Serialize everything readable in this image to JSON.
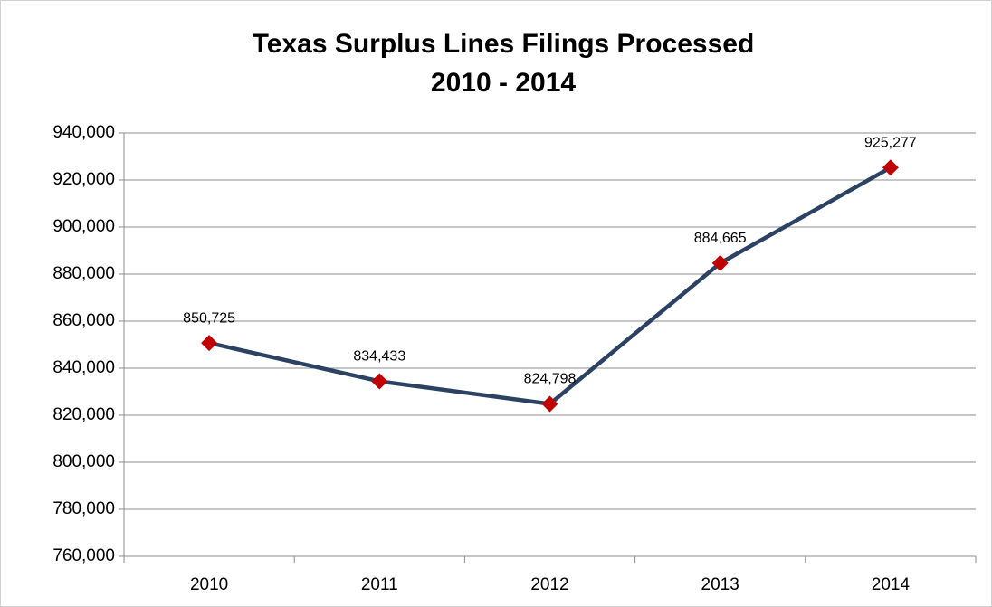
{
  "chart_data": {
    "type": "line",
    "title": [
      "Texas Surplus Lines Filings Processed",
      "2010 - 2014"
    ],
    "categories": [
      "2010",
      "2011",
      "2012",
      "2013",
      "2014"
    ],
    "series": [
      {
        "name": "Filings Processed",
        "color": "#2c4263",
        "marker_color": "#c00000",
        "values": [
          850725,
          834433,
          824798,
          884665,
          925277
        ],
        "value_labels": [
          "850,725",
          "834,433",
          "824,798",
          "884,665",
          "925,277"
        ]
      }
    ],
    "ylim": [
      760000,
      940000
    ],
    "yticks": [
      {
        "value": 760000,
        "label": "760,000"
      },
      {
        "value": 780000,
        "label": "780,000"
      },
      {
        "value": 800000,
        "label": "800,000"
      },
      {
        "value": 820000,
        "label": "820,000"
      },
      {
        "value": 840000,
        "label": "840,000"
      },
      {
        "value": 860000,
        "label": "860,000"
      },
      {
        "value": 880000,
        "label": "880,000"
      },
      {
        "value": 900000,
        "label": "900,000"
      },
      {
        "value": 920000,
        "label": "920,000"
      },
      {
        "value": 940000,
        "label": "940,000"
      }
    ],
    "grid": true
  }
}
